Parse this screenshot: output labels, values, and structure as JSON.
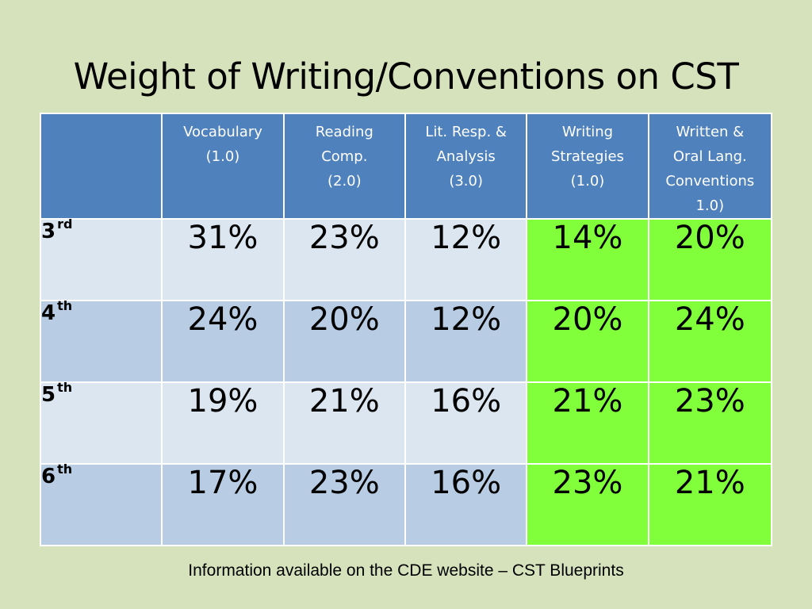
{
  "slide": {
    "title": "Weight of Writing/Conventions on CST",
    "footer": "Information available on the CDE website – CST Blueprints"
  },
  "table": {
    "corner": "",
    "headers": [
      [
        "Vocabulary",
        "(1.0)"
      ],
      [
        "Reading",
        "Comp.",
        "(2.0)"
      ],
      [
        "Lit. Resp. &",
        "Analysis",
        "(3.0)"
      ],
      [
        "Writing",
        "Strategies",
        "(1.0)"
      ],
      [
        "Written &",
        "Oral Lang.",
        "Conventions",
        "1.0)"
      ]
    ],
    "rows": [
      {
        "grade": "3",
        "suffix": "rd",
        "values": [
          "31%",
          "23%",
          "12%",
          "14%",
          "20%"
        ]
      },
      {
        "grade": "4",
        "suffix": "th",
        "values": [
          "24%",
          "20%",
          "12%",
          "20%",
          "24%"
        ]
      },
      {
        "grade": "5",
        "suffix": "th",
        "values": [
          "19%",
          "21%",
          "16%",
          "21%",
          "23%"
        ]
      },
      {
        "grade": "6",
        "suffix": "th",
        "values": [
          "17%",
          "23%",
          "16%",
          "23%",
          "21%"
        ]
      }
    ],
    "highlight_columns": [
      3,
      4
    ],
    "colors": {
      "background": "#d6e2bc",
      "header": "#4f81bd",
      "row_light": "#dce6f1",
      "row_dark": "#b8cce4",
      "highlight": "#80ff3a"
    }
  }
}
